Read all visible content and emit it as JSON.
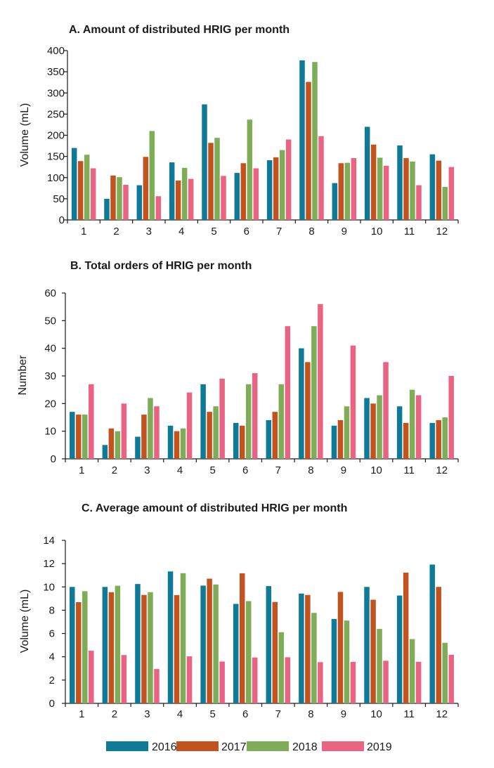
{
  "colors": {
    "2016": "#0f7a98",
    "2017": "#c2531f",
    "2018": "#7fac57",
    "2019": "#ea6383"
  },
  "legend": [
    {
      "label": "2016",
      "color": "#0f7a98"
    },
    {
      "label": "2017",
      "color": "#c2531f"
    },
    {
      "label": "2018",
      "color": "#7fac57"
    },
    {
      "label": "2019",
      "color": "#ea6383"
    }
  ],
  "chart_data": [
    {
      "type": "bar",
      "title": "A. Amount of distributed HRIG per month",
      "xlabel": "",
      "ylabel": "Volume (mL)",
      "ylim": [
        0,
        400
      ],
      "yticks": [
        0,
        50,
        100,
        150,
        200,
        250,
        300,
        350,
        400
      ],
      "categories": [
        "1",
        "2",
        "3",
        "4",
        "5",
        "6",
        "7",
        "8",
        "9",
        "10",
        "11",
        "12"
      ],
      "series": [
        {
          "name": "2016",
          "values": [
            170,
            50,
            82,
            136,
            273,
            111,
            141,
            377,
            87,
            220,
            176,
            155
          ]
        },
        {
          "name": "2017",
          "values": [
            139,
            105,
            149,
            93,
            182,
            134,
            148,
            326,
            134,
            178,
            146,
            140
          ]
        },
        {
          "name": "2018",
          "values": [
            154,
            101,
            210,
            123,
            194,
            237,
            165,
            373,
            135,
            147,
            138,
            78
          ]
        },
        {
          "name": "2019",
          "values": [
            122,
            83,
            56,
            97,
            104,
            122,
            190,
            198,
            146,
            128,
            82,
            125
          ]
        }
      ]
    },
    {
      "type": "bar",
      "title": "B. Total orders of HRIG per month",
      "xlabel": "",
      "ylabel": "Number",
      "ylim": [
        0,
        60
      ],
      "yticks": [
        0,
        10,
        20,
        30,
        40,
        50,
        60
      ],
      "categories": [
        "1",
        "2",
        "3",
        "4",
        "5",
        "6",
        "7",
        "8",
        "9",
        "10",
        "11",
        "12"
      ],
      "series": [
        {
          "name": "2016",
          "values": [
            17,
            5,
            8,
            12,
            27,
            13,
            14,
            40,
            12,
            22,
            19,
            13
          ]
        },
        {
          "name": "2017",
          "values": [
            16,
            11,
            16,
            10,
            17,
            12,
            17,
            35,
            14,
            20,
            13,
            14
          ]
        },
        {
          "name": "2018",
          "values": [
            16,
            10,
            22,
            11,
            19,
            27,
            27,
            48,
            19,
            23,
            25,
            15
          ]
        },
        {
          "name": "2019",
          "values": [
            27,
            20,
            19,
            24,
            29,
            31,
            48,
            56,
            41,
            35,
            23,
            30
          ]
        }
      ]
    },
    {
      "type": "bar",
      "title": "C. Average amount of distributed HRIG per month",
      "xlabel": "",
      "ylabel": "Volume (mL)",
      "ylim": [
        0,
        14
      ],
      "yticks": [
        0,
        2,
        4,
        6,
        8,
        10,
        12,
        14
      ],
      "categories": [
        "1",
        "2",
        "3",
        "4",
        "5",
        "6",
        "7",
        "8",
        "9",
        "10",
        "11",
        "12"
      ],
      "series": [
        {
          "name": "2016",
          "values": [
            10.0,
            10.0,
            10.25,
            11.33,
            10.11,
            8.54,
            10.07,
            9.43,
            7.25,
            10.0,
            9.26,
            11.92
          ]
        },
        {
          "name": "2017",
          "values": [
            8.69,
            9.55,
            9.31,
            9.3,
            10.71,
            11.17,
            8.71,
            9.31,
            9.57,
            8.9,
            11.23,
            10.0
          ]
        },
        {
          "name": "2018",
          "values": [
            9.63,
            10.1,
            9.55,
            11.18,
            10.21,
            8.78,
            6.11,
            7.77,
            7.11,
            6.39,
            5.52,
            5.2
          ]
        },
        {
          "name": "2019",
          "values": [
            4.52,
            4.15,
            2.95,
            4.04,
            3.59,
            3.94,
            3.96,
            3.54,
            3.56,
            3.66,
            3.57,
            4.17
          ]
        }
      ]
    }
  ]
}
